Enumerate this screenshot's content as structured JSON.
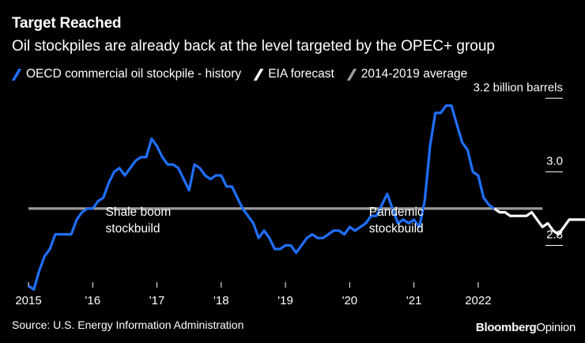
{
  "header": {
    "title": "Target Reached",
    "subtitle": "Oil stockpiles are already back at the level targeted by the OPEC+ group"
  },
  "legend": [
    {
      "label": "OECD commercial oil stockpile - history",
      "color": "#1f6fff"
    },
    {
      "label": "EIA forecast",
      "color": "#ffffff"
    },
    {
      "label": "2014-2019 average",
      "color": "#9a9a9a"
    }
  ],
  "footer": {
    "source": "Source: U.S. Energy Information Administration",
    "brand_bold": "Bloomberg",
    "brand_regular": "Opinion"
  },
  "colors": {
    "history": "#1f6fff",
    "forecast": "#ffffff",
    "average": "#9a9a9a",
    "tick": "#ffffff"
  },
  "chart_data": {
    "type": "line",
    "title": "Target Reached",
    "subtitle": "Oil stockpiles are already back at the level targeted by the OPEC+ group",
    "xlabel": "",
    "ylabel": "billion barrels",
    "xlim": [
      2015.0,
      2023.17
    ],
    "ylim": [
      2.7,
      3.22
    ],
    "x_ticks": [
      {
        "value": 2015,
        "label": "2015"
      },
      {
        "value": 2016,
        "label": "'16"
      },
      {
        "value": 2017,
        "label": "'17"
      },
      {
        "value": 2018,
        "label": "'18"
      },
      {
        "value": 2019,
        "label": "'19"
      },
      {
        "value": 2020,
        "label": "'20"
      },
      {
        "value": 2021,
        "label": "'21"
      },
      {
        "value": 2022,
        "label": "2022"
      }
    ],
    "y_ticks": [
      {
        "value": 2.8,
        "label": "2.8"
      },
      {
        "value": 3.0,
        "label": "3.0"
      },
      {
        "value": 3.2,
        "label": "3.2 billion barrels"
      }
    ],
    "series": [
      {
        "name": "OECD commercial oil stockpile - history",
        "color": "#1f6fff",
        "start": 2015.0,
        "step_months": 1,
        "values": [
          2.69,
          2.68,
          2.73,
          2.77,
          2.79,
          2.83,
          2.83,
          2.83,
          2.83,
          2.87,
          2.89,
          2.9,
          2.9,
          2.92,
          2.93,
          2.97,
          3.0,
          3.01,
          2.99,
          3.01,
          3.03,
          3.04,
          3.04,
          3.09,
          3.07,
          3.04,
          3.02,
          3.02,
          3.01,
          2.98,
          2.95,
          3.02,
          3.01,
          2.99,
          2.98,
          2.99,
          2.99,
          2.96,
          2.96,
          2.93,
          2.9,
          2.88,
          2.86,
          2.82,
          2.84,
          2.82,
          2.79,
          2.79,
          2.8,
          2.8,
          2.78,
          2.8,
          2.82,
          2.83,
          2.82,
          2.82,
          2.83,
          2.84,
          2.84,
          2.83,
          2.85,
          2.84,
          2.85,
          2.86,
          2.88,
          2.88,
          2.91,
          2.94,
          2.9,
          2.86,
          2.87,
          2.86,
          2.87,
          2.85,
          2.92,
          3.07,
          3.16,
          3.16,
          3.18,
          3.18,
          3.13,
          3.08,
          3.06,
          3.0,
          2.99,
          2.93,
          2.91,
          2.9
        ]
      },
      {
        "name": "EIA forecast",
        "color": "#ffffff",
        "start": 2022.25,
        "step_months": 1,
        "values": [
          2.9,
          2.89,
          2.89,
          2.88,
          2.88,
          2.88,
          2.88,
          2.89,
          2.87,
          2.85,
          2.86,
          2.84,
          2.83,
          2.85,
          2.87,
          2.87,
          2.87,
          2.87,
          2.86,
          2.87,
          2.87,
          2.85
        ]
      },
      {
        "name": "2014-2019 average",
        "color": "#9a9a9a",
        "x": [
          2015.0,
          2023.0
        ],
        "values": [
          2.9,
          2.9
        ]
      }
    ],
    "annotations": [
      {
        "lines": [
          "Shale boom",
          "stockbuild"
        ],
        "x": 2016.2,
        "y": 2.88
      },
      {
        "lines": [
          "Pandemic",
          "stockbuild"
        ],
        "x": 2020.3,
        "y": 2.88
      }
    ]
  }
}
